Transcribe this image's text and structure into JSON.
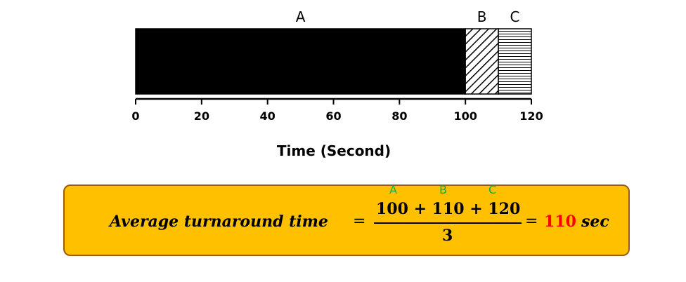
{
  "chart_data": {
    "type": "bar",
    "orientation": "horizontal-stacked",
    "segments": [
      {
        "name": "A",
        "start": 0,
        "end": 100,
        "fill": "solid-black"
      },
      {
        "name": "B",
        "start": 100,
        "end": 110,
        "fill": "diagonal-hatch"
      },
      {
        "name": "C",
        "start": 110,
        "end": 120,
        "fill": "horizontal-hatch"
      }
    ],
    "xlim": [
      0,
      120
    ],
    "x_ticks": [
      "0",
      "20",
      "40",
      "60",
      "80",
      "100",
      "120"
    ],
    "xlabel": "Time (Second)"
  },
  "formula": {
    "lhs": "Average turnaround time",
    "equals": "=",
    "numerator": "100 + 110 + 120",
    "denominator": "3",
    "result": "110",
    "unit": "sec",
    "term_labels": [
      "A",
      "B",
      "C"
    ]
  },
  "colors": {
    "box_fill": "#FFC000",
    "box_border": "#9C5A14",
    "term_label": "#00B050",
    "result": "#FF0000"
  }
}
